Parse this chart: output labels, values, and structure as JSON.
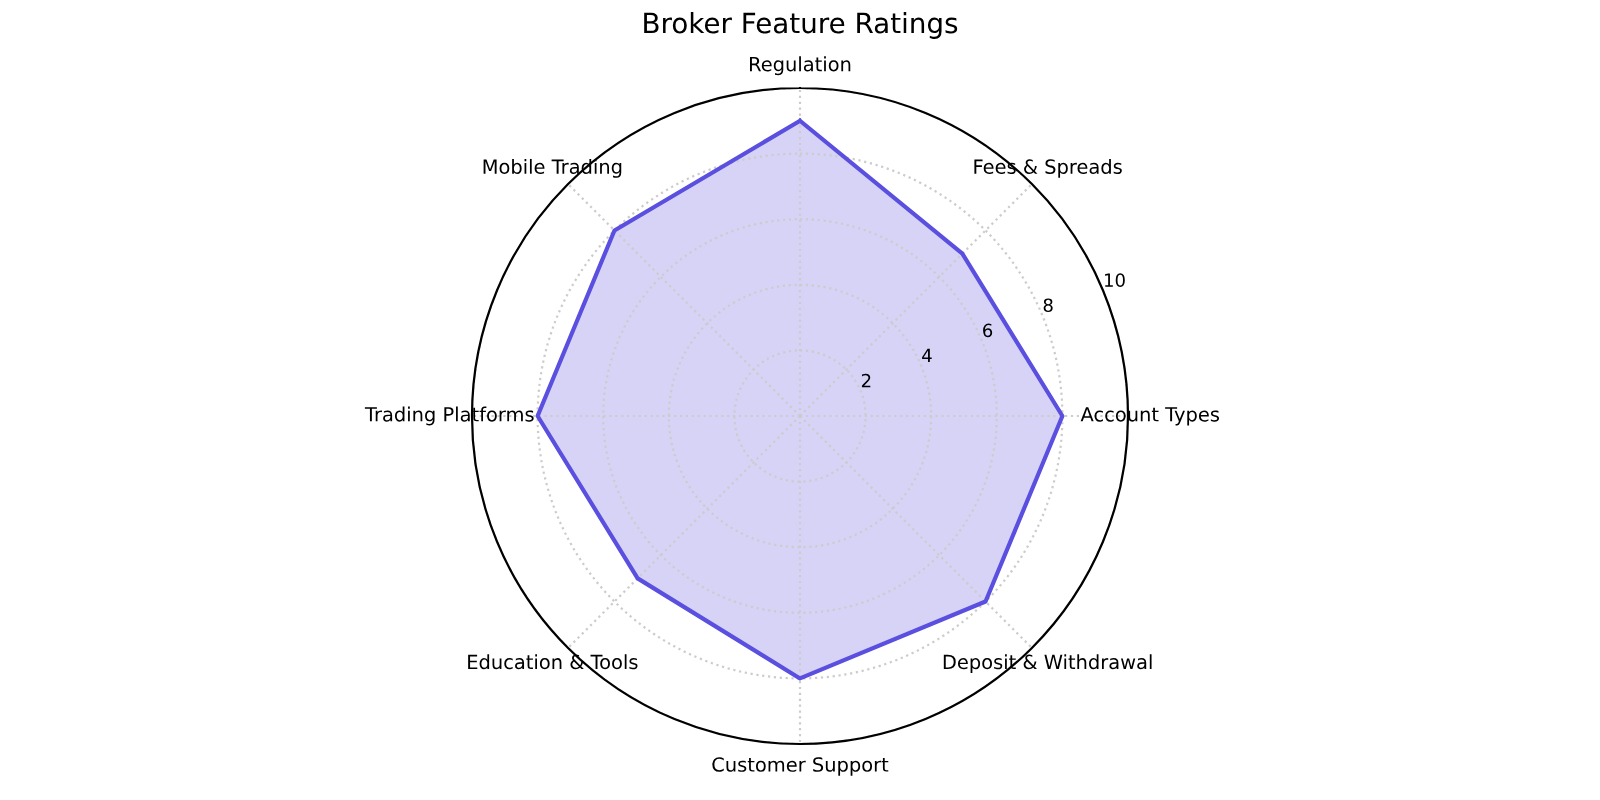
{
  "chart_data": {
    "type": "radar",
    "title": "Broker Feature Ratings",
    "categories": [
      "Regulation",
      "Fees & Spreads",
      "Account Types",
      "Deposit & Withdrawal",
      "Customer Support",
      "Education & Tools",
      "Trading Platforms",
      "Mobile Trading"
    ],
    "series": [
      {
        "color": "#5b4fe0",
        "values": [
          9,
          7,
          8,
          8,
          8,
          7,
          8,
          8
        ]
      }
    ],
    "ylim": [
      0,
      10
    ],
    "yticks": [
      2,
      4,
      6,
      8,
      10
    ],
    "grid": true,
    "legend": false
  }
}
